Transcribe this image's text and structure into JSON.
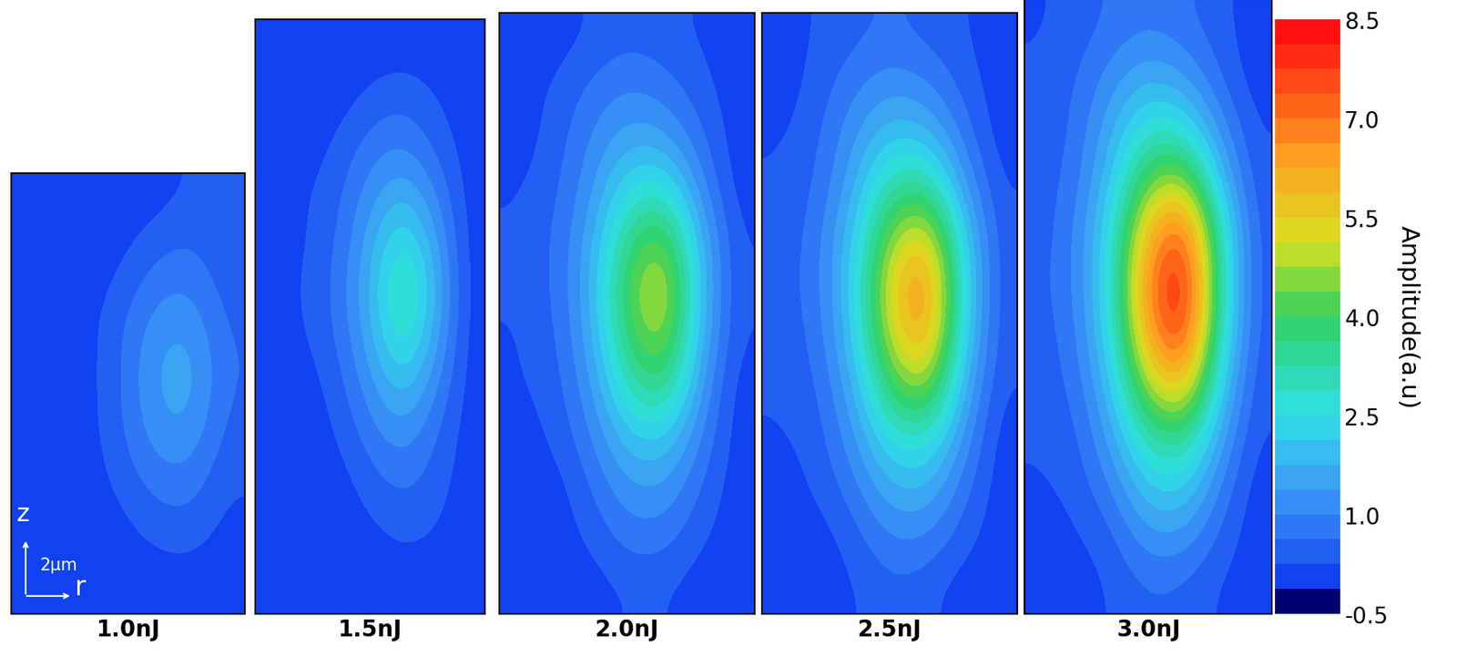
{
  "chart_data": {
    "type": "heatmap",
    "tick_labels": false,
    "z_label": "z",
    "r_label": "r",
    "scale_bar": "2μm",
    "panels": [
      {
        "title": "1.0nJ",
        "cells": [
          [
            0,
            0,
            0,
            0,
            0.3,
            0.3
          ],
          [
            0,
            0,
            0,
            0.5,
            0.8,
            0.3
          ],
          [
            0,
            0,
            0.3,
            1.0,
            1.3,
            0.5
          ],
          [
            0,
            0,
            0.3,
            1.3,
            1.8,
            0.6
          ],
          [
            0,
            0,
            0.3,
            1.2,
            1.6,
            0.5
          ],
          [
            0,
            0,
            0.2,
            0.8,
            1.0,
            0.3
          ],
          [
            0,
            0,
            0,
            0.3,
            0.5,
            0.1
          ],
          [
            0,
            0,
            0,
            0,
            0,
            0
          ]
        ]
      },
      {
        "title": "1.5nJ",
        "cells": [
          [
            0,
            0,
            0,
            0,
            0,
            0,
            0
          ],
          [
            0,
            0,
            0,
            0.3,
            0.5,
            0.2,
            0
          ],
          [
            0,
            0,
            0.3,
            0.8,
            1.0,
            0.5,
            0
          ],
          [
            0,
            0.2,
            0.5,
            1.2,
            1.8,
            1.0,
            0
          ],
          [
            0,
            0.2,
            0.6,
            1.6,
            2.8,
            1.5,
            0
          ],
          [
            0,
            0.3,
            0.7,
            1.8,
            3.5,
            1.8,
            0
          ],
          [
            0,
            0.2,
            0.6,
            1.6,
            3.0,
            1.5,
            0
          ],
          [
            0,
            0,
            0.4,
            1.2,
            2.0,
            1.0,
            0
          ],
          [
            0,
            0,
            0.2,
            0.8,
            1.2,
            0.6,
            0
          ],
          [
            0,
            0,
            0,
            0.4,
            0.7,
            0.4,
            0
          ],
          [
            0,
            0,
            0,
            0.1,
            0.3,
            0.2,
            0
          ],
          [
            0,
            0,
            0,
            0,
            0,
            0,
            0
          ]
        ]
      },
      {
        "title": "2.0nJ",
        "cells": [
          [
            0,
            0,
            0.3,
            0.5,
            0.4,
            0.2,
            0
          ],
          [
            0,
            0.3,
            0.7,
            1.0,
            0.8,
            0.4,
            0
          ],
          [
            0,
            0.4,
            1.0,
            1.6,
            1.5,
            0.7,
            0
          ],
          [
            0.2,
            0.5,
            1.2,
            2.5,
            2.8,
            1.2,
            0
          ],
          [
            0.3,
            0.6,
            1.5,
            3.5,
            4.5,
            1.8,
            0.2
          ],
          [
            0.3,
            0.6,
            1.6,
            4.2,
            5.5,
            2.0,
            0.2
          ],
          [
            0.2,
            0.5,
            1.5,
            3.8,
            5.0,
            1.8,
            0.2
          ],
          [
            0.2,
            0.4,
            1.2,
            3.0,
            3.8,
            1.4,
            0
          ],
          [
            0,
            0.3,
            0.9,
            2.0,
            2.2,
            1.0,
            0
          ],
          [
            0,
            0,
            0.6,
            1.3,
            1.4,
            0.6,
            0
          ],
          [
            0,
            0,
            0.3,
            0.8,
            0.8,
            0.3,
            0
          ],
          [
            0,
            0,
            0,
            0.3,
            0.3,
            0,
            0
          ]
        ]
      },
      {
        "title": "2.5nJ",
        "cells": [
          [
            0,
            0.3,
            0.5,
            0.7,
            0.5,
            0.3,
            0
          ],
          [
            0,
            0.4,
            0.9,
            1.3,
            1.1,
            0.5,
            0
          ],
          [
            0.2,
            0.5,
            1.3,
            2.1,
            2.0,
            0.9,
            0
          ],
          [
            0.3,
            0.6,
            1.6,
            3.3,
            3.6,
            1.5,
            0.2
          ],
          [
            0.3,
            0.8,
            2.0,
            4.6,
            5.8,
            2.3,
            0.3
          ],
          [
            0.4,
            0.8,
            2.1,
            5.5,
            7.0,
            2.6,
            0.3
          ],
          [
            0.3,
            0.7,
            2.0,
            5.0,
            6.6,
            2.3,
            0.3
          ],
          [
            0.3,
            0.5,
            1.6,
            3.9,
            4.9,
            1.8,
            0.2
          ],
          [
            0.2,
            0.4,
            1.2,
            2.6,
            2.9,
            1.3,
            0
          ],
          [
            0,
            0.3,
            0.8,
            1.7,
            1.8,
            0.8,
            0
          ],
          [
            0,
            0,
            0.4,
            1.0,
            1.0,
            0.4,
            0
          ],
          [
            0,
            0,
            0.2,
            0.5,
            0.4,
            0,
            0
          ]
        ]
      },
      {
        "title": "3.0nJ",
        "cells": [
          [
            0.2,
            0.4,
            0.7,
            0.9,
            0.7,
            0.4,
            0
          ],
          [
            0.3,
            0.6,
            1.2,
            1.7,
            1.4,
            0.6,
            0
          ],
          [
            0.3,
            0.7,
            1.7,
            2.8,
            2.6,
            1.2,
            0.2
          ],
          [
            0.4,
            0.8,
            2.1,
            4.3,
            4.8,
            2.0,
            0.3
          ],
          [
            0.4,
            1.0,
            2.6,
            6.0,
            7.5,
            3.0,
            0.4
          ],
          [
            0.5,
            1.0,
            2.7,
            7.0,
            8.5,
            3.3,
            0.4
          ],
          [
            0.4,
            0.9,
            2.6,
            6.5,
            8.2,
            3.0,
            0.4
          ],
          [
            0.4,
            0.7,
            2.1,
            5.0,
            6.2,
            2.3,
            0.3
          ],
          [
            0.3,
            0.5,
            1.6,
            3.3,
            3.7,
            1.6,
            0.2
          ],
          [
            0.2,
            0.4,
            1.0,
            2.2,
            2.3,
            1.0,
            0
          ],
          [
            0,
            0.2,
            0.5,
            1.3,
            1.3,
            0.5,
            0
          ],
          [
            0,
            0,
            0.3,
            0.6,
            0.5,
            0.2,
            0
          ]
        ]
      }
    ],
    "colorbar": {
      "label": "Amplitude(a.u)",
      "lim": [
        -0.5,
        8.5
      ],
      "ticks": [
        {
          "value": -0.5,
          "label": "-0.5"
        },
        {
          "value": 1.0,
          "label": "1.0"
        },
        {
          "value": 2.5,
          "label": "2.5"
        },
        {
          "value": 4.0,
          "label": "4.0"
        },
        {
          "value": 5.5,
          "label": "5.5"
        },
        {
          "value": 7.0,
          "label": "7.0"
        },
        {
          "value": 8.5,
          "label": "8.5"
        }
      ]
    }
  }
}
